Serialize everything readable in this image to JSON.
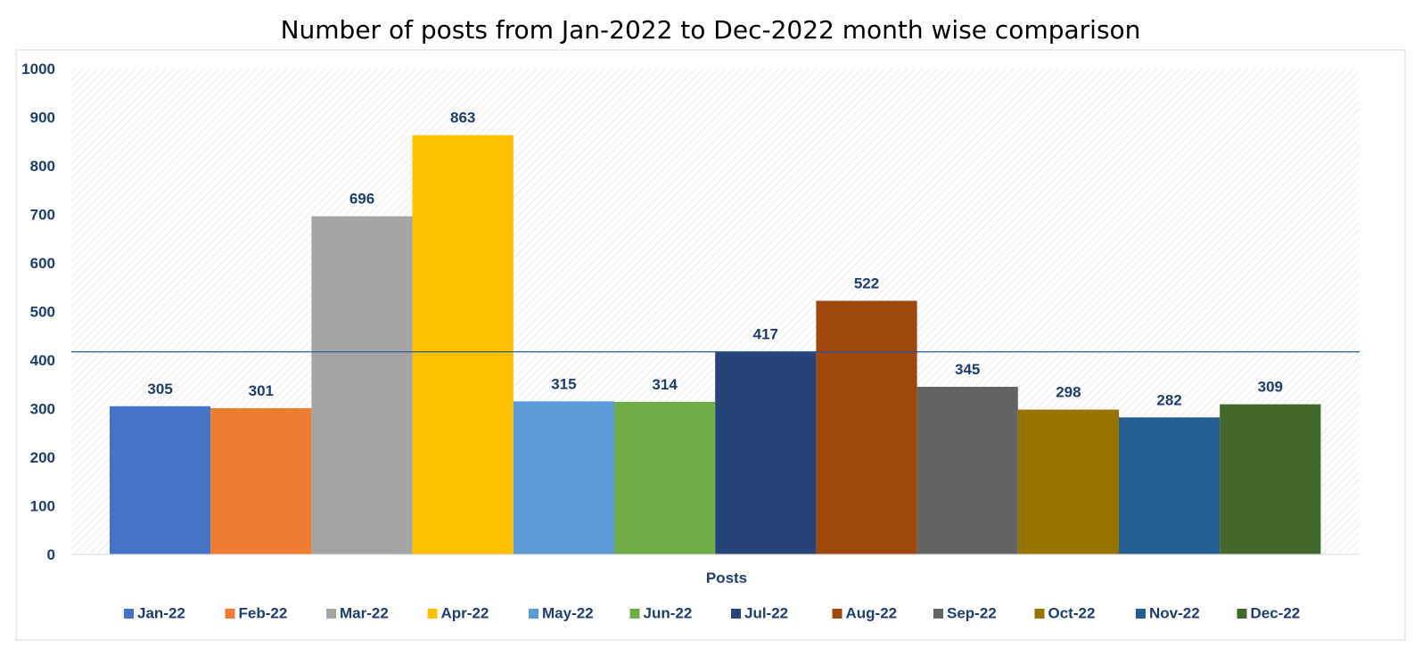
{
  "chart_data": {
    "type": "bar",
    "title": "Number of posts from Jan-2022  to Dec-2022 month wise comparison",
    "xlabel": "Posts",
    "ylabel": "",
    "ylim": [
      0,
      1000
    ],
    "yticks": [
      "0",
      "100",
      "200",
      "300",
      "400",
      "500",
      "600",
      "700",
      "800",
      "900",
      "1000"
    ],
    "grid": false,
    "legend_position": "bottom",
    "reference_line": 417,
    "series": [
      {
        "name": "Jan-22",
        "value": 305,
        "label": "305",
        "color": "#4472c4"
      },
      {
        "name": "Feb-22",
        "value": 301,
        "label": "301",
        "color": "#ed7d31"
      },
      {
        "name": "Mar-22",
        "value": 696,
        "label": "696",
        "color": "#a5a5a5"
      },
      {
        "name": "Apr-22",
        "value": 863,
        "label": "863",
        "color": "#ffc000"
      },
      {
        "name": "May-22",
        "value": 315,
        "label": "315",
        "color": "#5b9bd5"
      },
      {
        "name": "Jun-22",
        "value": 314,
        "label": "314",
        "color": "#70ad47"
      },
      {
        "name": "Jul-22",
        "value": 417,
        "label": "417",
        "color": "#264478"
      },
      {
        "name": "Aug-22",
        "value": 522,
        "label": "522",
        "color": "#9e480e"
      },
      {
        "name": "Sep-22",
        "value": 345,
        "label": "345",
        "color": "#636363"
      },
      {
        "name": "Oct-22",
        "value": 298,
        "label": "298",
        "color": "#997300"
      },
      {
        "name": "Nov-22",
        "value": 282,
        "label": "282",
        "color": "#255e91"
      },
      {
        "name": "Dec-22",
        "value": 309,
        "label": "309",
        "color": "#43682b"
      }
    ],
    "colors": {
      "text": "#1f3c6e",
      "reference_line": "#2f5597",
      "plot_hatch": "#d9d9d9",
      "border": "#d9d9d9"
    }
  }
}
